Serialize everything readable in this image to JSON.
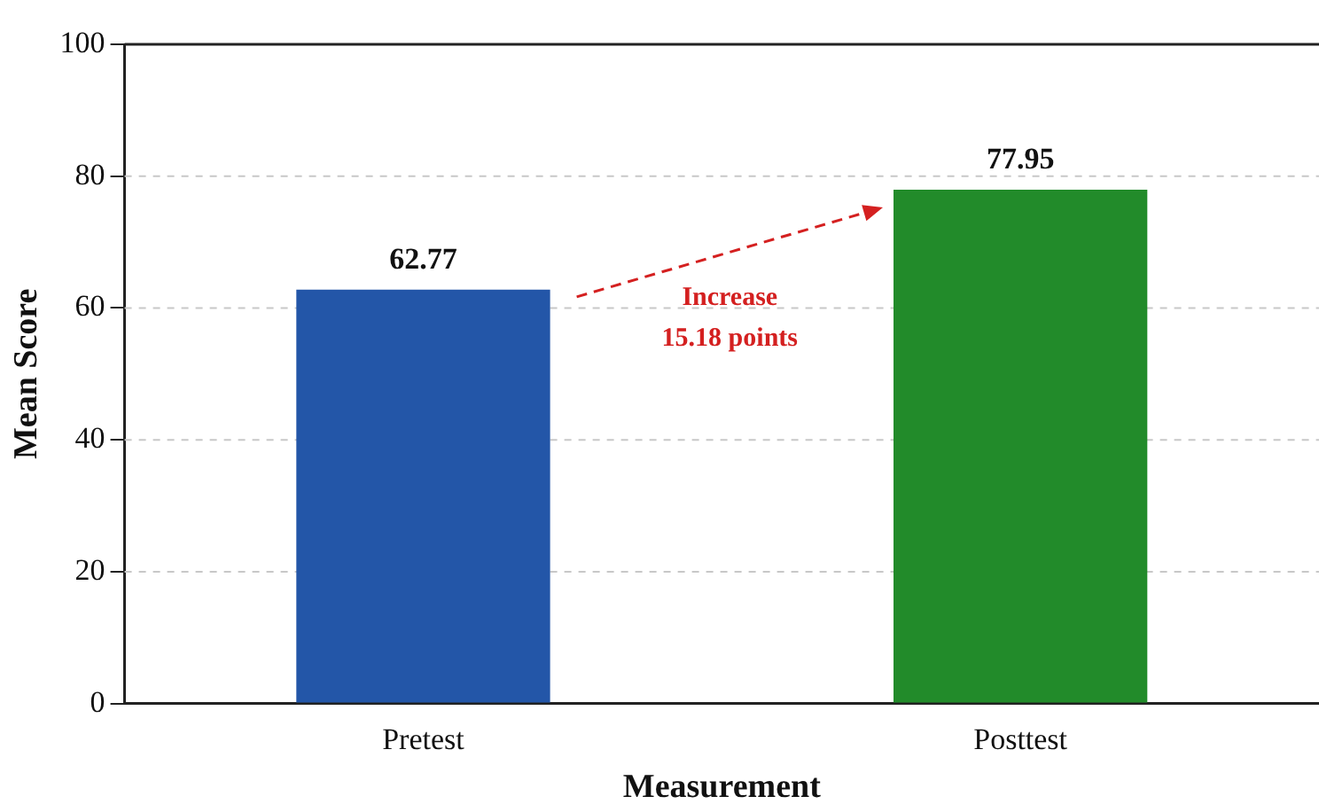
{
  "chart_data": {
    "type": "bar",
    "xlabel": "Measurement",
    "ylabel": "Mean Score",
    "categories": [
      "Pretest",
      "Posttest"
    ],
    "values": [
      62.77,
      77.95
    ],
    "colors": [
      "#2356a8",
      "#228b2a"
    ],
    "ylim": [
      0,
      100
    ],
    "yticks": [
      0,
      20,
      40,
      60,
      80,
      100
    ],
    "grid": "y",
    "data_labels": true,
    "legend": false,
    "annotations": [
      "Increase\n15.18 points"
    ]
  }
}
